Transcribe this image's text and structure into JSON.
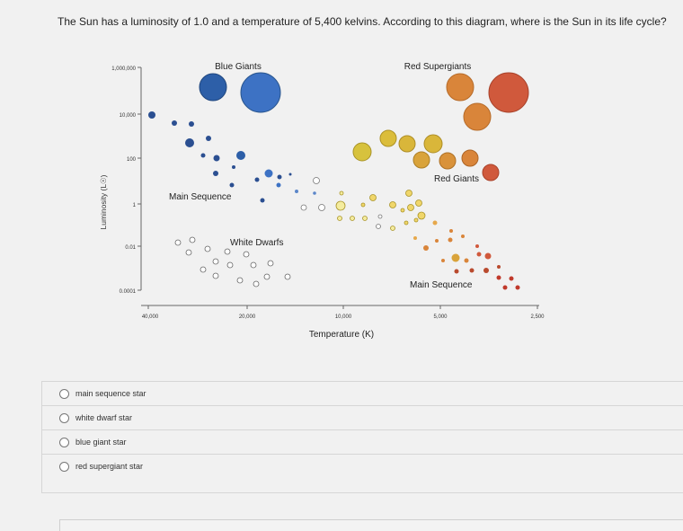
{
  "question": "The Sun has a luminosity of 1.0 and a temperature of 5,400 kelvins. According to this diagram, where is the Sun in its life cycle?",
  "diagram": {
    "ylabel": "Luminosity (L☉)",
    "xlabel": "Temperature (K)",
    "y_ticks": [
      "1,000,000",
      "10,000",
      "100",
      "1",
      "0.01",
      "0.0001"
    ],
    "x_ticks": [
      "40,000",
      "20,000",
      "10,000",
      "5,000",
      "2,500"
    ],
    "labels": {
      "blue_giants": "Blue Giants",
      "red_supergiants": "Red Supergiants",
      "red_giants": "Red Giants",
      "main_sequence_upper": "Main Sequence",
      "white_dwarfs": "White Dwarfs",
      "main_sequence_lower": "Main Sequence"
    }
  },
  "options": [
    {
      "label": "main sequence star"
    },
    {
      "label": "white dwarf star"
    },
    {
      "label": "blue giant star"
    },
    {
      "label": "red supergiant star"
    }
  ]
}
